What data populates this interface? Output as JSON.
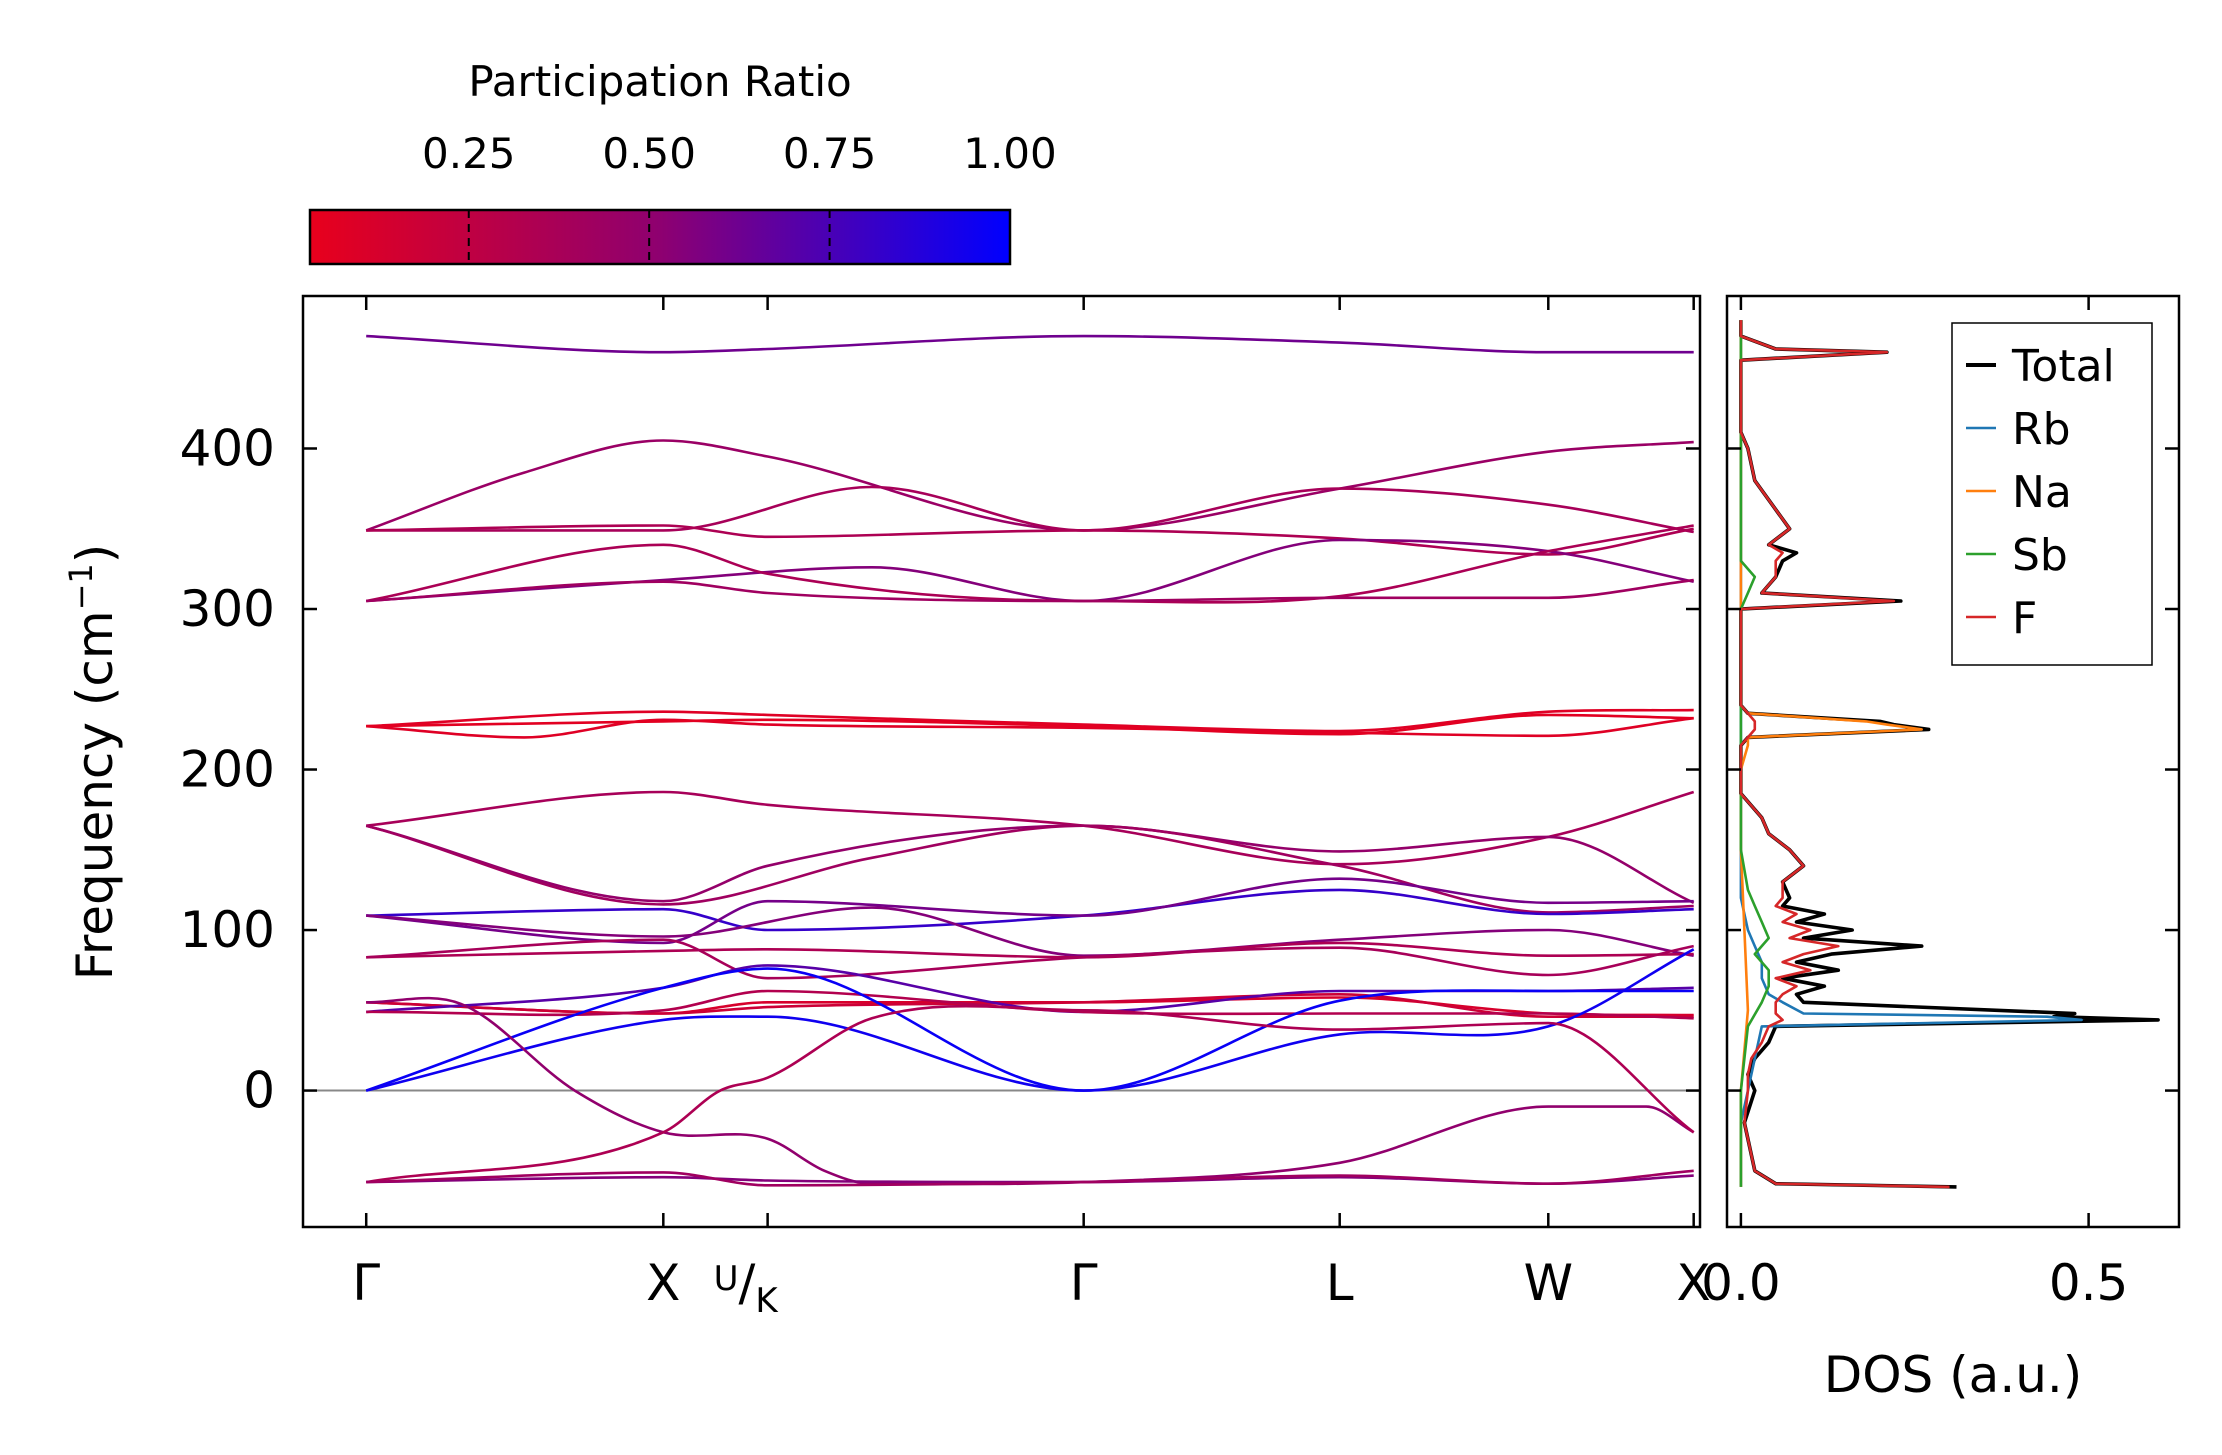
{
  "colors": {
    "low": "#e8001c",
    "mid": "#8e0070",
    "high": "#0000ff",
    "zero_line": "#888888",
    "legend_total": "#000000",
    "legend_rb": "#1f77b4",
    "legend_na": "#ff7f0e",
    "legend_sb": "#2ca02c",
    "legend_f": "#d62728"
  },
  "colorbar": {
    "title": "Participation Ratio",
    "ticks": [
      "0.25",
      "0.50",
      "0.75",
      "1.00"
    ],
    "tick_values": [
      0.25,
      0.5,
      0.75,
      1.0
    ],
    "range": [
      0.03,
      1.0
    ]
  },
  "chart_data": [
    {
      "type": "line",
      "title": "",
      "ylabel": "Frequency (cm⁻¹)",
      "ylabel_base": "Frequency (cm",
      "ylabel_sup": "−1",
      "ylabel_close": ")",
      "ylim": [
        -85,
        495
      ],
      "yticks": [
        0,
        100,
        200,
        300,
        400
      ],
      "ytick_labels": [
        "0",
        "100",
        "200",
        "300",
        "400"
      ],
      "xlim": [
        -0.2,
        4.22
      ],
      "kpoints": [
        {
          "x": 0.0,
          "label": "Γ"
        },
        {
          "x": 0.94,
          "label": "X"
        },
        {
          "x": 1.27,
          "label": "U/K",
          "label_top": "U",
          "label_bottom": "K"
        },
        {
          "x": 2.27,
          "label": "Γ"
        },
        {
          "x": 3.08,
          "label": "L"
        },
        {
          "x": 3.74,
          "label": "W"
        },
        {
          "x": 4.2,
          "label": "X"
        }
      ],
      "series": [
        {
          "name": "b1",
          "pr": 0.62,
          "x": [
            0,
            0.94,
            1.27,
            2.27,
            3.08,
            3.74,
            4.2
          ],
          "y": [
            470,
            460,
            462,
            470,
            466,
            460,
            460
          ]
        },
        {
          "name": "b2",
          "pr": 0.45,
          "x": [
            0,
            0.5,
            0.94,
            1.27,
            2.27,
            3.08,
            3.74,
            4.2
          ],
          "y": [
            349,
            385,
            405,
            395,
            349,
            375,
            398,
            404
          ]
        },
        {
          "name": "b3",
          "pr": 0.38,
          "x": [
            0,
            0.94,
            1.6,
            2.27,
            3.08,
            3.74,
            4.2
          ],
          "y": [
            349,
            349,
            376,
            349,
            375,
            365,
            348
          ]
        },
        {
          "name": "b4",
          "pr": 0.35,
          "x": [
            0,
            0.94,
            1.27,
            2.27,
            3.08,
            3.74,
            4.2
          ],
          "y": [
            349,
            352,
            345,
            349,
            344,
            334,
            350
          ]
        },
        {
          "name": "b5",
          "pr": 0.55,
          "x": [
            0,
            0.94,
            1.6,
            2.27,
            3.08,
            3.74,
            4.2
          ],
          "y": [
            305,
            318,
            326,
            305,
            343,
            336,
            317
          ]
        },
        {
          "name": "b6",
          "pr": 0.36,
          "x": [
            0,
            0.94,
            1.27,
            2.27,
            3.08,
            3.74,
            4.2
          ],
          "y": [
            305,
            340,
            322,
            305,
            308,
            336,
            352
          ]
        },
        {
          "name": "b7",
          "pr": 0.42,
          "x": [
            0,
            0.94,
            1.27,
            2.27,
            3.08,
            3.74,
            4.2
          ],
          "y": [
            305,
            317,
            310,
            305,
            307,
            307,
            318
          ]
        },
        {
          "name": "b8",
          "pr": 0.08,
          "x": [
            0,
            0.94,
            1.27,
            2.27,
            3.08,
            3.74,
            4.2
          ],
          "y": [
            227,
            236,
            234,
            228,
            224,
            236,
            237
          ]
        },
        {
          "name": "b9",
          "pr": 0.08,
          "x": [
            0,
            0.5,
            0.94,
            1.27,
            2.27,
            3.08,
            3.74,
            4.2
          ],
          "y": [
            227,
            220,
            231,
            228,
            226,
            223,
            221,
            232
          ]
        },
        {
          "name": "b10",
          "pr": 0.06,
          "x": [
            0,
            0.94,
            1.27,
            2.27,
            3.08,
            3.74,
            4.2
          ],
          "y": [
            227,
            230,
            231,
            227,
            222,
            234,
            232
          ]
        },
        {
          "name": "b11",
          "pr": 0.38,
          "x": [
            0,
            0.94,
            1.27,
            2.27,
            3.08,
            3.74,
            4.2
          ],
          "y": [
            165,
            186,
            178,
            165,
            141,
            158,
            186
          ]
        },
        {
          "name": "b12",
          "pr": 0.48,
          "x": [
            0,
            0.94,
            1.27,
            2.27,
            3.08,
            3.74,
            4.2
          ],
          "y": [
            165,
            118,
            140,
            165,
            149,
            158,
            117
          ]
        },
        {
          "name": "b13",
          "pr": 0.42,
          "x": [
            0,
            0.94,
            1.6,
            2.27,
            3.08,
            3.74,
            4.2
          ],
          "y": [
            165,
            116,
            145,
            165,
            140,
            111,
            115
          ]
        },
        {
          "name": "b14",
          "pr": 0.82,
          "x": [
            0,
            0.94,
            1.27,
            2.27,
            3.08,
            3.74,
            4.2
          ],
          "y": [
            109,
            113,
            100,
            109,
            125,
            110,
            113
          ]
        },
        {
          "name": "b15",
          "pr": 0.6,
          "x": [
            0,
            0.94,
            1.27,
            2.27,
            3.08,
            3.74,
            4.2
          ],
          "y": [
            109,
            92,
            118,
            109,
            132,
            117,
            118
          ]
        },
        {
          "name": "b16",
          "pr": 0.55,
          "x": [
            0,
            0.94,
            1.6,
            2.27,
            3.08,
            3.74,
            4.2
          ],
          "y": [
            109,
            96,
            114,
            84,
            94,
            100,
            84
          ]
        },
        {
          "name": "b17",
          "pr": 0.35,
          "x": [
            0,
            0.94,
            1.27,
            2.27,
            3.08,
            3.74,
            4.2
          ],
          "y": [
            83,
            87,
            88,
            83,
            92,
            84,
            85
          ]
        },
        {
          "name": "b18",
          "pr": 0.38,
          "x": [
            0,
            0.94,
            1.27,
            2.27,
            3.08,
            3.74,
            4.2
          ],
          "y": [
            83,
            94,
            70,
            83,
            89,
            72,
            90
          ]
        },
        {
          "name": "b19",
          "pr": 0.12,
          "x": [
            0,
            0.94,
            1.27,
            2.27,
            3.08,
            3.74,
            4.2
          ],
          "y": [
            55,
            48,
            55,
            55,
            58,
            48,
            47
          ]
        },
        {
          "name": "b20",
          "pr": 0.18,
          "x": [
            0,
            0.94,
            1.27,
            2.27,
            3.08,
            3.74,
            4.2
          ],
          "y": [
            55,
            48,
            52,
            55,
            60,
            46,
            46
          ]
        },
        {
          "name": "b21",
          "pr": 0.7,
          "x": [
            0,
            0.94,
            1.27,
            2.27,
            3.08,
            3.74,
            4.2
          ],
          "y": [
            49,
            64,
            78,
            49,
            62,
            62,
            64
          ]
        },
        {
          "name": "b22",
          "pr": 0.32,
          "x": [
            0,
            0.94,
            1.27,
            2.27,
            3.08,
            3.74,
            4.2
          ],
          "y": [
            49,
            50,
            62,
            49,
            48,
            48,
            45
          ]
        },
        {
          "name": "b23",
          "pr": 0.97,
          "x": [
            0,
            0.94,
            1.27,
            2.27,
            3.08,
            3.74,
            4.2
          ],
          "y": [
            0,
            64,
            76,
            0,
            56,
            62,
            62
          ]
        },
        {
          "name": "b24",
          "pr": 0.95,
          "x": [
            0,
            0.94,
            1.27,
            2.27,
            3.08,
            3.74,
            4.2
          ],
          "y": [
            0,
            44,
            46,
            0,
            35,
            40,
            88
          ]
        },
        {
          "name": "b25",
          "pr": 0.5,
          "x": [
            0,
            0.3,
            0.66,
            0.94,
            1.27,
            1.45,
            1.6,
            2.27,
            3.08,
            3.74,
            4.05,
            4.2
          ],
          "y": [
            55,
            54,
            0,
            -26,
            -30,
            -50,
            -58,
            -57,
            -45,
            -10,
            -10,
            -26
          ]
        },
        {
          "name": "b26",
          "pr": 0.35,
          "x": [
            0,
            0.94,
            1.12,
            1.27,
            1.6,
            2.27,
            3.08,
            3.74,
            4.2
          ],
          "y": [
            -57,
            -26,
            0,
            8,
            45,
            50,
            38,
            42,
            -26
          ]
        },
        {
          "name": "b27",
          "pr": 0.55,
          "x": [
            0,
            0.94,
            1.27,
            2.27,
            3.08,
            3.74,
            4.2
          ],
          "y": [
            -57,
            -54,
            -56,
            -57,
            -54,
            -58,
            -53
          ]
        },
        {
          "name": "b28",
          "pr": 0.42,
          "x": [
            0,
            0.94,
            1.27,
            2.27,
            3.08,
            3.74,
            4.2
          ],
          "y": [
            -57,
            -51,
            -59,
            -57,
            -53,
            -58,
            -50
          ]
        }
      ]
    },
    {
      "type": "line",
      "title": "",
      "xlabel": "DOS (a.u.)",
      "xlim": [
        -0.02,
        0.63
      ],
      "xticks": [
        0.0,
        0.5
      ],
      "xtick_labels": [
        "0.0",
        "0.5"
      ],
      "ylim": [
        -85,
        495
      ],
      "legend": [
        "Total",
        "Rb",
        "Na",
        "Sb",
        "F"
      ],
      "legend_position": "top-right",
      "series": [
        {
          "name": "Total",
          "freq": [
            -60,
            -58,
            -50,
            -20,
            0,
            10,
            20,
            30,
            40,
            44,
            46,
            48,
            55,
            60,
            65,
            70,
            75,
            80,
            85,
            90,
            95,
            100,
            105,
            110,
            115,
            120,
            130,
            140,
            150,
            160,
            170,
            185,
            190,
            215,
            220,
            225,
            228,
            230,
            235,
            240,
            300,
            305,
            310,
            320,
            330,
            335,
            340,
            350,
            380,
            400,
            410,
            455,
            460,
            462,
            470,
            480
          ],
          "dos": [
            0.31,
            0.05,
            0.02,
            0.005,
            0.02,
            0.01,
            0.02,
            0.04,
            0.05,
            0.6,
            0.45,
            0.48,
            0.09,
            0.08,
            0.12,
            0.06,
            0.14,
            0.08,
            0.13,
            0.26,
            0.09,
            0.16,
            0.08,
            0.12,
            0.06,
            0.07,
            0.06,
            0.09,
            0.07,
            0.04,
            0.03,
            0.0,
            0.0,
            0.0,
            0.01,
            0.27,
            0.22,
            0.2,
            0.01,
            0.0,
            0.0,
            0.23,
            0.03,
            0.05,
            0.06,
            0.08,
            0.04,
            0.07,
            0.02,
            0.01,
            0.0,
            0.0,
            0.21,
            0.05,
            0.0,
            0.0
          ]
        },
        {
          "name": "Rb",
          "freq": [
            -60,
            -50,
            -20,
            0,
            20,
            40,
            44,
            46,
            48,
            55,
            60,
            70,
            80,
            90,
            100,
            110,
            120,
            200,
            300,
            480
          ],
          "dos": [
            0.0,
            0.0,
            0.0,
            0.01,
            0.02,
            0.03,
            0.49,
            0.44,
            0.09,
            0.06,
            0.04,
            0.03,
            0.03,
            0.02,
            0.01,
            0.005,
            0.0,
            0.0,
            0.0,
            0.0
          ]
        },
        {
          "name": "Na",
          "freq": [
            -60,
            0,
            50,
            100,
            150,
            200,
            215,
            220,
            225,
            228,
            230,
            235,
            240,
            300,
            480
          ],
          "dos": [
            0.0,
            0.0,
            0.01,
            0.005,
            0.0,
            0.0,
            0.01,
            0.01,
            0.26,
            0.21,
            0.18,
            0.01,
            0.0,
            0.0,
            0.0
          ]
        },
        {
          "name": "Sb",
          "freq": [
            -60,
            0,
            20,
            40,
            55,
            65,
            75,
            85,
            95,
            105,
            115,
            125,
            150,
            200,
            300,
            310,
            320,
            330,
            400,
            470,
            480
          ],
          "dos": [
            0.0,
            0.0,
            0.005,
            0.01,
            0.03,
            0.04,
            0.04,
            0.02,
            0.04,
            0.03,
            0.02,
            0.01,
            0.0,
            0.0,
            0.0,
            0.01,
            0.02,
            0.0,
            0.0,
            0.0,
            0.0
          ]
        },
        {
          "name": "F",
          "freq": [
            -60,
            -58,
            -50,
            -20,
            0,
            10,
            20,
            30,
            40,
            44,
            48,
            55,
            60,
            65,
            70,
            75,
            80,
            85,
            90,
            95,
            100,
            105,
            110,
            115,
            120,
            130,
            140,
            150,
            160,
            170,
            185,
            190,
            215,
            220,
            225,
            230,
            235,
            240,
            300,
            305,
            310,
            320,
            330,
            335,
            340,
            350,
            380,
            400,
            410,
            455,
            460,
            462,
            470,
            480
          ],
          "dos": [
            0.3,
            0.05,
            0.02,
            0.005,
            0.01,
            0.01,
            0.015,
            0.03,
            0.04,
            0.06,
            0.05,
            0.05,
            0.06,
            0.08,
            0.05,
            0.1,
            0.06,
            0.09,
            0.14,
            0.07,
            0.1,
            0.06,
            0.08,
            0.05,
            0.06,
            0.06,
            0.09,
            0.07,
            0.04,
            0.03,
            0.0,
            0.0,
            0.0,
            0.01,
            0.02,
            0.02,
            0.01,
            0.0,
            0.0,
            0.22,
            0.03,
            0.05,
            0.05,
            0.06,
            0.04,
            0.07,
            0.02,
            0.01,
            0.0,
            0.0,
            0.21,
            0.05,
            0.0,
            0.0
          ]
        }
      ]
    }
  ]
}
